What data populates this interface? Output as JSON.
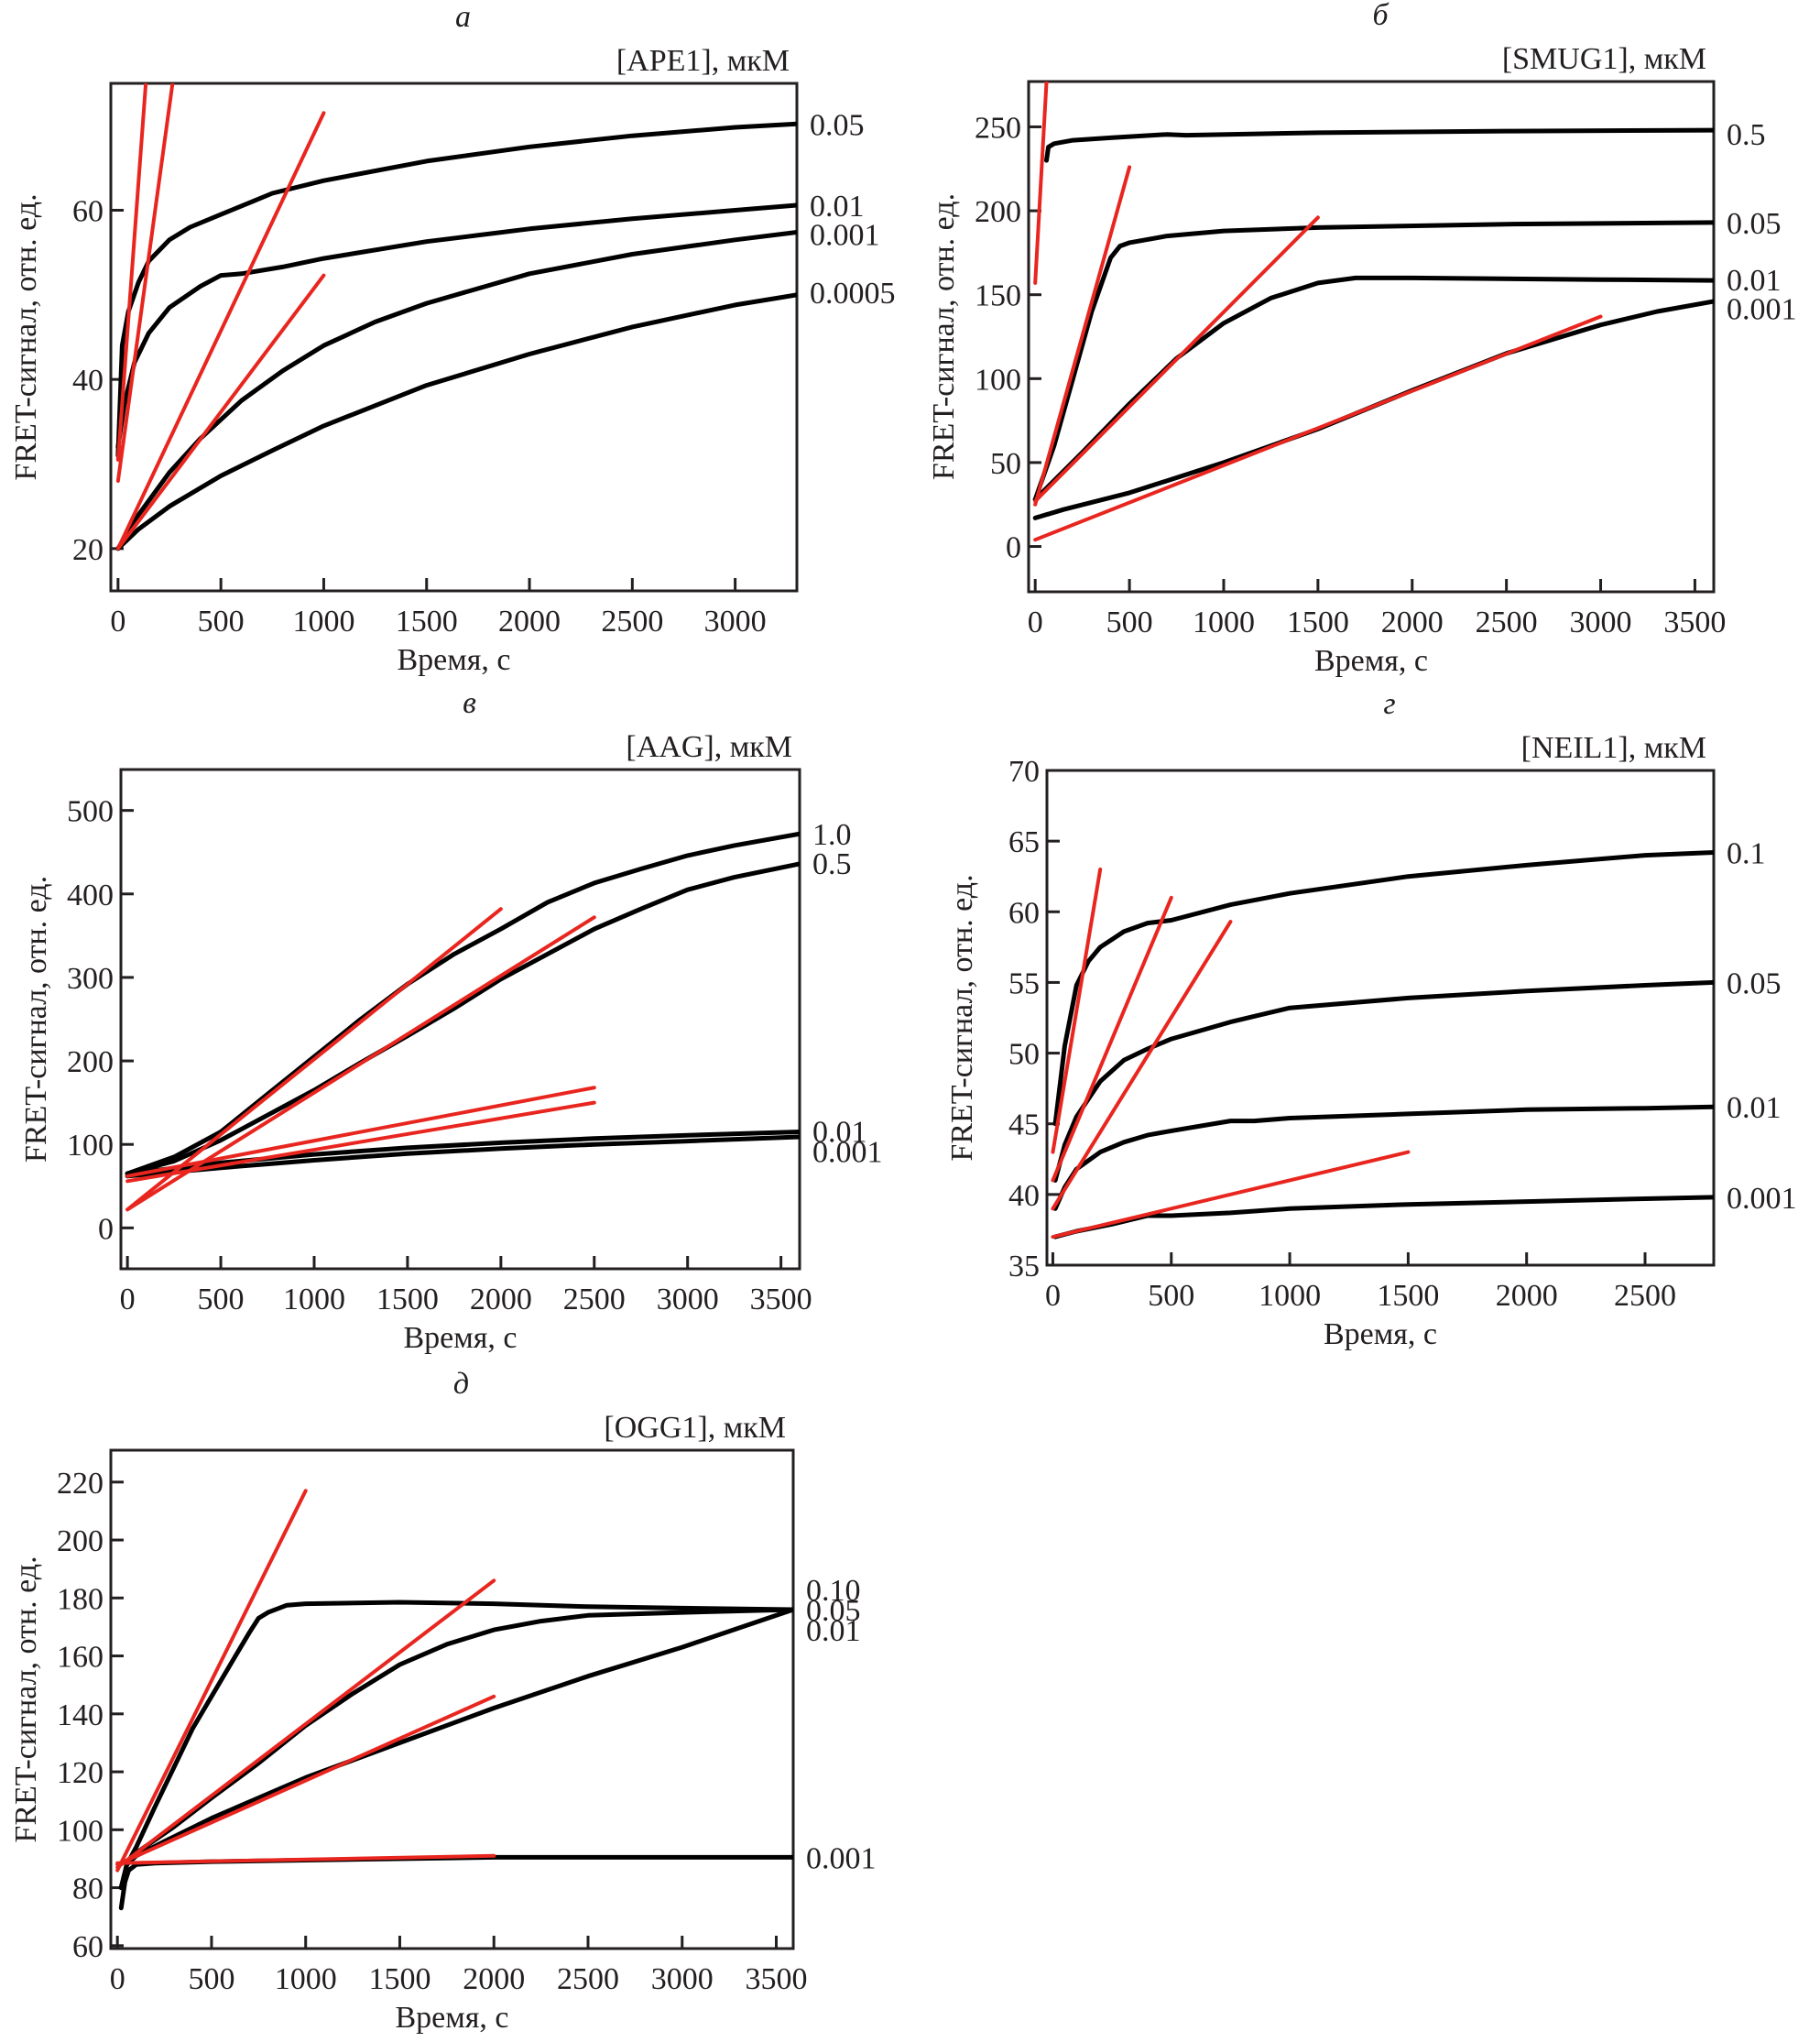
{
  "figure": {
    "y_axis_label": "FRET-сигнал, отн. ед.",
    "x_axis_label": "Время, с",
    "fit_color": "#e8261f",
    "curve_color": "#000000"
  },
  "chart_data": [
    {
      "id": "a",
      "type": "line",
      "panel_letter": "а",
      "title": "[APE1], мкМ",
      "xlabel": "Время, с",
      "ylabel": "FRET-сигнал, отн. ед.",
      "xlim": [
        -35,
        3300
      ],
      "ylim": [
        15,
        75
      ],
      "xticks": [
        0,
        500,
        1000,
        1500,
        2000,
        2500,
        3000
      ],
      "yticks": [
        20,
        40,
        60
      ],
      "grid": false,
      "series": [
        {
          "name": "0.05",
          "x": [
            0,
            20,
            50,
            100,
            150,
            250,
            350,
            500,
            650,
            750,
            1000,
            1500,
            2000,
            2500,
            3000,
            3300
          ],
          "y": [
            31,
            44,
            48,
            51.5,
            54,
            56.5,
            58,
            59.5,
            61,
            62,
            63.5,
            65.8,
            67.5,
            68.8,
            69.8,
            70.2
          ]
        },
        {
          "name": "0.01",
          "x": [
            0,
            30,
            80,
            150,
            250,
            400,
            500,
            600,
            800,
            1000,
            1500,
            2000,
            2500,
            3000,
            3300
          ],
          "y": [
            32,
            37,
            42,
            45.5,
            48.5,
            51,
            52.3,
            52.5,
            53.3,
            54.3,
            56.3,
            57.8,
            59,
            60,
            60.6
          ]
        },
        {
          "name": "0.001",
          "x": [
            0,
            100,
            250,
            400,
            600,
            800,
            1000,
            1250,
            1500,
            2000,
            2500,
            3000,
            3300
          ],
          "y": [
            20,
            24,
            29,
            33,
            37.5,
            41,
            44,
            46.8,
            49,
            52.5,
            54.8,
            56.5,
            57.4
          ]
        },
        {
          "name": "0.0005",
          "x": [
            0,
            100,
            250,
            500,
            750,
            1000,
            1500,
            2000,
            2500,
            3000,
            3300
          ],
          "y": [
            20,
            22.3,
            25,
            28.6,
            31.6,
            34.5,
            39.3,
            43,
            46.2,
            48.8,
            50
          ]
        }
      ],
      "fits": [
        {
          "x": [
            0,
            135
          ],
          "y": [
            30.5,
            75
          ]
        },
        {
          "x": [
            0,
            265
          ],
          "y": [
            28,
            75
          ]
        },
        {
          "x": [
            0,
            1000
          ],
          "y": [
            20,
            71.5
          ]
        },
        {
          "x": [
            0,
            1000
          ],
          "y": [
            20,
            52.3
          ]
        }
      ],
      "series_labels": [
        {
          "text": "0.05",
          "y": 70.2
        },
        {
          "text": "0.01",
          "y": 60.6
        },
        {
          "text": "0.001",
          "y": 57.2
        },
        {
          "text": "0.0005",
          "y": 50.3
        }
      ]
    },
    {
      "id": "b",
      "type": "line",
      "panel_letter": "б",
      "title": "[SMUG1], мкМ",
      "xlabel": "Время, с",
      "ylabel": "FRET-сигнал, отн. ед.",
      "xlim": [
        -35,
        3600
      ],
      "ylim": [
        -27,
        277
      ],
      "xticks": [
        0,
        500,
        1000,
        1500,
        2000,
        2500,
        3000,
        3500
      ],
      "yticks": [
        0,
        50,
        100,
        150,
        200,
        250
      ],
      "grid": false,
      "series": [
        {
          "name": "0.5",
          "x": [
            60,
            70,
            100,
            200,
            400,
            700,
            800,
            1500,
            2500,
            3600
          ],
          "y": [
            230,
            238,
            240,
            242,
            243.5,
            245.5,
            245,
            246.5,
            247.5,
            248
          ]
        },
        {
          "name": "0.05",
          "x": [
            0,
            100,
            200,
            300,
            400,
            450,
            500,
            700,
            1000,
            1500,
            2500,
            3600
          ],
          "y": [
            28,
            60,
            100,
            140,
            172,
            179,
            181,
            185,
            188,
            190,
            192,
            193
          ]
        },
        {
          "name": "0.01",
          "x": [
            0,
            250,
            500,
            750,
            1000,
            1250,
            1500,
            1700,
            2000,
            3000,
            3600
          ],
          "y": [
            28,
            56,
            85,
            112,
            133,
            148,
            157,
            160,
            160,
            159,
            158.5
          ]
        },
        {
          "name": "0.001",
          "x": [
            0,
            150,
            500,
            1000,
            1500,
            2000,
            2500,
            3000,
            3300,
            3600
          ],
          "y": [
            17,
            22,
            32,
            50,
            70,
            93,
            115,
            132,
            140,
            146
          ]
        }
      ],
      "fits": [
        {
          "x": [
            0,
            60
          ],
          "y": [
            157,
            277
          ]
        },
        {
          "x": [
            0,
            500
          ],
          "y": [
            25,
            226
          ]
        },
        {
          "x": [
            0,
            1500
          ],
          "y": [
            27,
            196
          ]
        },
        {
          "x": [
            0,
            3000
          ],
          "y": [
            4,
            137
          ]
        }
      ],
      "series_labels": [
        {
          "text": "0.5",
          "y": 246
        },
        {
          "text": "0.05",
          "y": 193
        },
        {
          "text": "0.01",
          "y": 159
        },
        {
          "text": "0.001",
          "y": 142
        }
      ]
    },
    {
      "id": "c",
      "type": "line",
      "panel_letter": "в",
      "title": "[AAG], мкМ",
      "xlabel": "Время, с",
      "ylabel": "FRET-сигнал, отн. ед.",
      "xlim": [
        -35,
        3600
      ],
      "ylim": [
        -49,
        549
      ],
      "xticks": [
        0,
        500,
        1000,
        1500,
        2000,
        2500,
        3000,
        3500
      ],
      "yticks": [
        0,
        100,
        200,
        300,
        400,
        500
      ],
      "grid": false,
      "series": [
        {
          "name": "1.0",
          "x": [
            0,
            250,
            500,
            750,
            1000,
            1250,
            1500,
            1750,
            2000,
            2250,
            2500,
            2750,
            3000,
            3250,
            3600
          ],
          "y": [
            65,
            85,
            115,
            160,
            205,
            250,
            292,
            328,
            358,
            390,
            413,
            430,
            446,
            458,
            472
          ]
        },
        {
          "name": "0.5",
          "x": [
            0,
            250,
            500,
            750,
            1000,
            1250,
            1500,
            1750,
            2000,
            2250,
            2500,
            2750,
            3000,
            3250,
            3600
          ],
          "y": [
            65,
            80,
            105,
            135,
            165,
            198,
            230,
            263,
            298,
            328,
            358,
            382,
            405,
            420,
            436
          ]
        },
        {
          "name": "0.01",
          "x": [
            0,
            500,
            1000,
            1500,
            2000,
            2500,
            3000,
            3600
          ],
          "y": [
            65,
            78,
            88,
            96,
            102,
            107,
            111,
            115
          ]
        },
        {
          "name": "0.001",
          "x": [
            0,
            500,
            1000,
            1500,
            2000,
            2500,
            3000,
            3600
          ],
          "y": [
            62,
            72,
            81,
            89,
            95,
            100,
            104,
            109
          ]
        }
      ],
      "fits": [
        {
          "x": [
            0,
            2000
          ],
          "y": [
            22,
            382
          ]
        },
        {
          "x": [
            0,
            2500
          ],
          "y": [
            22,
            372
          ]
        },
        {
          "x": [
            0,
            2500
          ],
          "y": [
            62,
            168
          ]
        },
        {
          "x": [
            0,
            2500
          ],
          "y": [
            56,
            150
          ]
        }
      ],
      "series_labels": [
        {
          "text": "1.0",
          "y": 472
        },
        {
          "text": "0.5",
          "y": 437
        },
        {
          "text": "0.01",
          "y": 116
        },
        {
          "text": "0.001",
          "y": 92
        }
      ]
    },
    {
      "id": "d",
      "type": "line",
      "panel_letter": "г",
      "title": "[NEIL1], мкМ",
      "xlabel": "Время, с",
      "ylabel": "FRET-сигнал, отн. ед.",
      "xlim": [
        -25,
        2790
      ],
      "ylim": [
        35,
        70
      ],
      "xticks": [
        0,
        500,
        1000,
        1500,
        2000,
        2500
      ],
      "yticks": [
        35,
        40,
        45,
        50,
        55,
        60,
        65,
        70
      ],
      "grid": false,
      "series": [
        {
          "name": "0.1",
          "x": [
            10,
            50,
            100,
            150,
            200,
            300,
            400,
            500,
            750,
            1000,
            1500,
            2000,
            2500,
            2790
          ],
          "y": [
            45,
            50.5,
            54.8,
            56.5,
            57.5,
            58.6,
            59.2,
            59.4,
            60.5,
            61.3,
            62.5,
            63.3,
            64,
            64.2
          ]
        },
        {
          "name": "0.05",
          "x": [
            10,
            50,
            100,
            200,
            300,
            400,
            500,
            750,
            1000,
            1500,
            2000,
            2500,
            2790
          ],
          "y": [
            41,
            43.5,
            45.5,
            48,
            49.5,
            50.3,
            51,
            52.2,
            53.2,
            53.9,
            54.4,
            54.8,
            55
          ]
        },
        {
          "name": "0.01",
          "x": [
            10,
            50,
            100,
            200,
            300,
            400,
            500,
            750,
            850,
            1000,
            1500,
            2000,
            2500,
            2790
          ],
          "y": [
            39,
            40.5,
            41.8,
            43,
            43.7,
            44.2,
            44.5,
            45.2,
            45.2,
            45.4,
            45.7,
            46,
            46.1,
            46.2
          ]
        },
        {
          "name": "0.001",
          "x": [
            10,
            100,
            250,
            400,
            500,
            750,
            1000,
            1500,
            2000,
            2500,
            2790
          ],
          "y": [
            37,
            37.4,
            37.9,
            38.5,
            38.5,
            38.7,
            39,
            39.3,
            39.5,
            39.7,
            39.8
          ]
        }
      ],
      "fits": [
        {
          "x": [
            0,
            200
          ],
          "y": [
            43,
            63
          ]
        },
        {
          "x": [
            0,
            500
          ],
          "y": [
            41,
            61
          ]
        },
        {
          "x": [
            0,
            750
          ],
          "y": [
            39,
            59.3
          ]
        },
        {
          "x": [
            0,
            1500
          ],
          "y": [
            37,
            43
          ]
        }
      ],
      "series_labels": [
        {
          "text": "0.1",
          "y": 64.2
        },
        {
          "text": "0.05",
          "y": 55
        },
        {
          "text": "0.01",
          "y": 46.2
        },
        {
          "text": "0.001",
          "y": 39.8
        }
      ]
    },
    {
      "id": "e",
      "type": "line",
      "panel_letter": "д",
      "title": "[OGG1], мкМ",
      "xlabel": "Время, с",
      "ylabel": "FRET-сигнал, отн. ед.",
      "xlim": [
        -35,
        3590
      ],
      "ylim": [
        59,
        231
      ],
      "xticks": [
        0,
        500,
        1000,
        1500,
        2000,
        2500,
        3000,
        3500
      ],
      "yticks": [
        60,
        80,
        100,
        120,
        140,
        160,
        180,
        200,
        220
      ],
      "grid": false,
      "series": [
        {
          "name": "0.10",
          "x": [
            20,
            50,
            100,
            200,
            400,
            600,
            700,
            750,
            800,
            900,
            1000,
            1500,
            2000,
            2500,
            3000,
            3590
          ],
          "y": [
            80,
            88,
            94,
            108,
            135,
            157,
            168,
            173,
            175,
            177.5,
            178,
            178.5,
            178,
            177,
            176.5,
            176
          ]
        },
        {
          "name": "0.05",
          "x": [
            20,
            50,
            100,
            300,
            500,
            750,
            1000,
            1250,
            1500,
            1750,
            2000,
            2250,
            2500,
            3000,
            3590
          ],
          "y": [
            80,
            88,
            92,
            101,
            111,
            123,
            136,
            147,
            157,
            164,
            169,
            172,
            174,
            175,
            176
          ]
        },
        {
          "name": "0.01",
          "x": [
            20,
            50,
            100,
            250,
            500,
            750,
            1000,
            1500,
            2000,
            2500,
            3000,
            3590
          ],
          "y": [
            80,
            88,
            91,
            96,
            104,
            111,
            118,
            130,
            142,
            153,
            163,
            176
          ]
        },
        {
          "name": "0.001",
          "x": [
            20,
            40,
            60,
            100,
            200,
            500,
            1000,
            2000,
            3000,
            3590
          ],
          "y": [
            73,
            82,
            86,
            88,
            88.5,
            89,
            89.5,
            90.5,
            90.5,
            90.5
          ]
        }
      ],
      "fits": [
        {
          "x": [
            0,
            1000
          ],
          "y": [
            86,
            217
          ]
        },
        {
          "x": [
            0,
            2000
          ],
          "y": [
            87,
            186
          ]
        },
        {
          "x": [
            0,
            2000
          ],
          "y": [
            88,
            146
          ]
        },
        {
          "x": [
            0,
            2000
          ],
          "y": [
            88.5,
            91
          ]
        }
      ],
      "series_labels": [
        {
          "text": "0.10",
          "y": 183
        },
        {
          "text": "0.05",
          "y": 176
        },
        {
          "text": "0.01",
          "y": 169
        },
        {
          "text": "0.001",
          "y": 90.5
        }
      ]
    }
  ]
}
